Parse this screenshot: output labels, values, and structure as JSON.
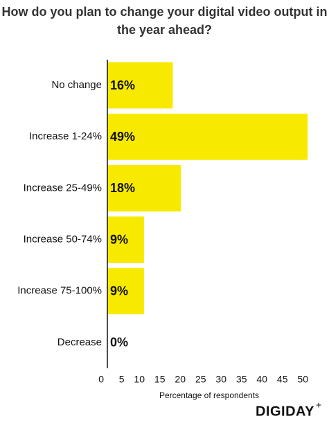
{
  "chart_data": {
    "type": "bar",
    "orientation": "horizontal",
    "title": "How do you plan to change your digital video output in the year ahead?",
    "categories": [
      "No change",
      "Increase 1-24%",
      "Increase 25-49%",
      "Increase 50-74%",
      "Increase 75-100%",
      "Decrease"
    ],
    "values": [
      16,
      49,
      18,
      9,
      9,
      0
    ],
    "value_labels": [
      "16%",
      "49%",
      "18%",
      "9%",
      "9%",
      "0%"
    ],
    "color": "#f7ea00",
    "xlim": [
      0,
      50
    ],
    "xticks": [
      0,
      5,
      10,
      15,
      20,
      25,
      30,
      35,
      40,
      45,
      50
    ],
    "x_label": "Percentage of respondents",
    "logo": "DIGIDAY",
    "logo_mark": "+"
  }
}
